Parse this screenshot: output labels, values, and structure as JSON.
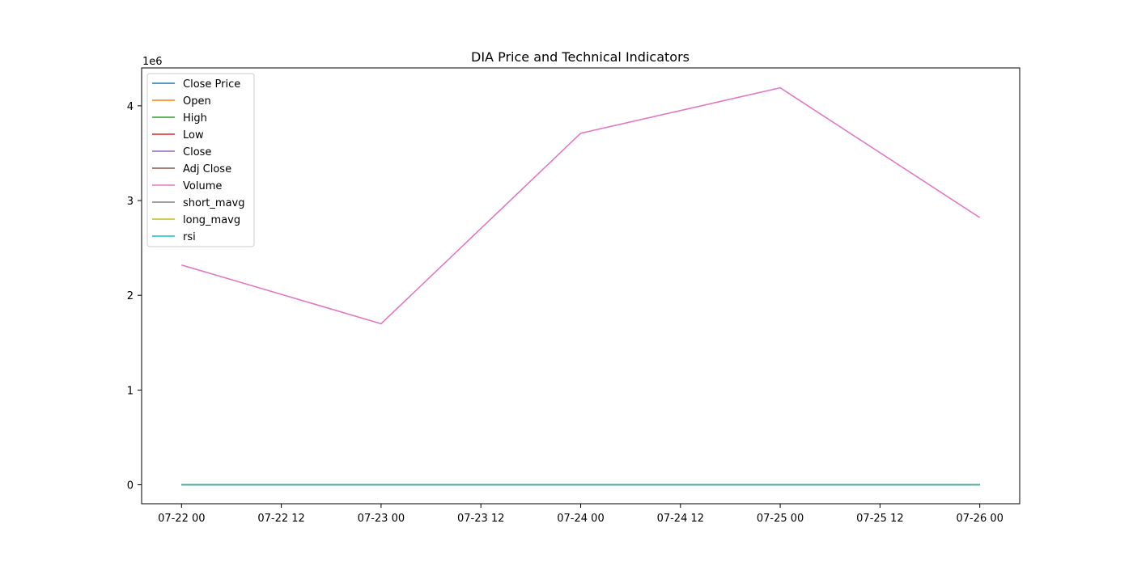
{
  "chart_data": {
    "type": "line",
    "title": "DIA Price and Technical Indicators",
    "xlabel": "",
    "ylabel": "",
    "y_scale_label": "1e6",
    "x": [
      "2024-07-22",
      "2024-07-23",
      "2024-07-24",
      "2024-07-25",
      "2024-07-26"
    ],
    "x_ticks": [
      "07-22 00",
      "07-22 12",
      "07-23 00",
      "07-23 12",
      "07-24 00",
      "07-24 12",
      "07-25 00",
      "07-25 12",
      "07-26 00"
    ],
    "y_ticks": [
      0,
      1,
      2,
      3,
      4
    ],
    "xlim": [
      "2024-07-21T19:12",
      "2024-07-26T04:48"
    ],
    "ylim": [
      -200000,
      4400000
    ],
    "grid": false,
    "legend_position": "top-left",
    "series": [
      {
        "name": "Close Price",
        "color": "#1f77b4",
        "values": [
          398,
          399,
          393,
          390,
          397
        ]
      },
      {
        "name": "Open",
        "color": "#ff7f0e",
        "values": [
          396,
          399,
          397,
          393,
          392
        ]
      },
      {
        "name": "High",
        "color": "#2ca02c",
        "values": [
          399,
          400,
          398,
          397,
          398
        ]
      },
      {
        "name": "Low",
        "color": "#d62728",
        "values": [
          395,
          397,
          392,
          389,
          391
        ]
      },
      {
        "name": "Close",
        "color": "#9467bd",
        "values": [
          398,
          399,
          393,
          390,
          397
        ]
      },
      {
        "name": "Adj Close",
        "color": "#8c564b",
        "values": [
          398,
          399,
          393,
          390,
          397
        ]
      },
      {
        "name": "Volume",
        "color": "#e377c2",
        "values": [
          2320000,
          1700000,
          3710000,
          4190000,
          2820000
        ]
      },
      {
        "name": "short_mavg",
        "color": "#7f7f7f",
        "values": [
          398,
          398.5,
          396.7,
          395,
          395.4
        ]
      },
      {
        "name": "long_mavg",
        "color": "#bcbd22",
        "values": [
          398,
          398.5,
          396.7,
          395,
          395.4
        ]
      },
      {
        "name": "rsi",
        "color": "#17becf",
        "values": [
          60,
          62,
          45,
          40,
          55
        ]
      }
    ]
  }
}
